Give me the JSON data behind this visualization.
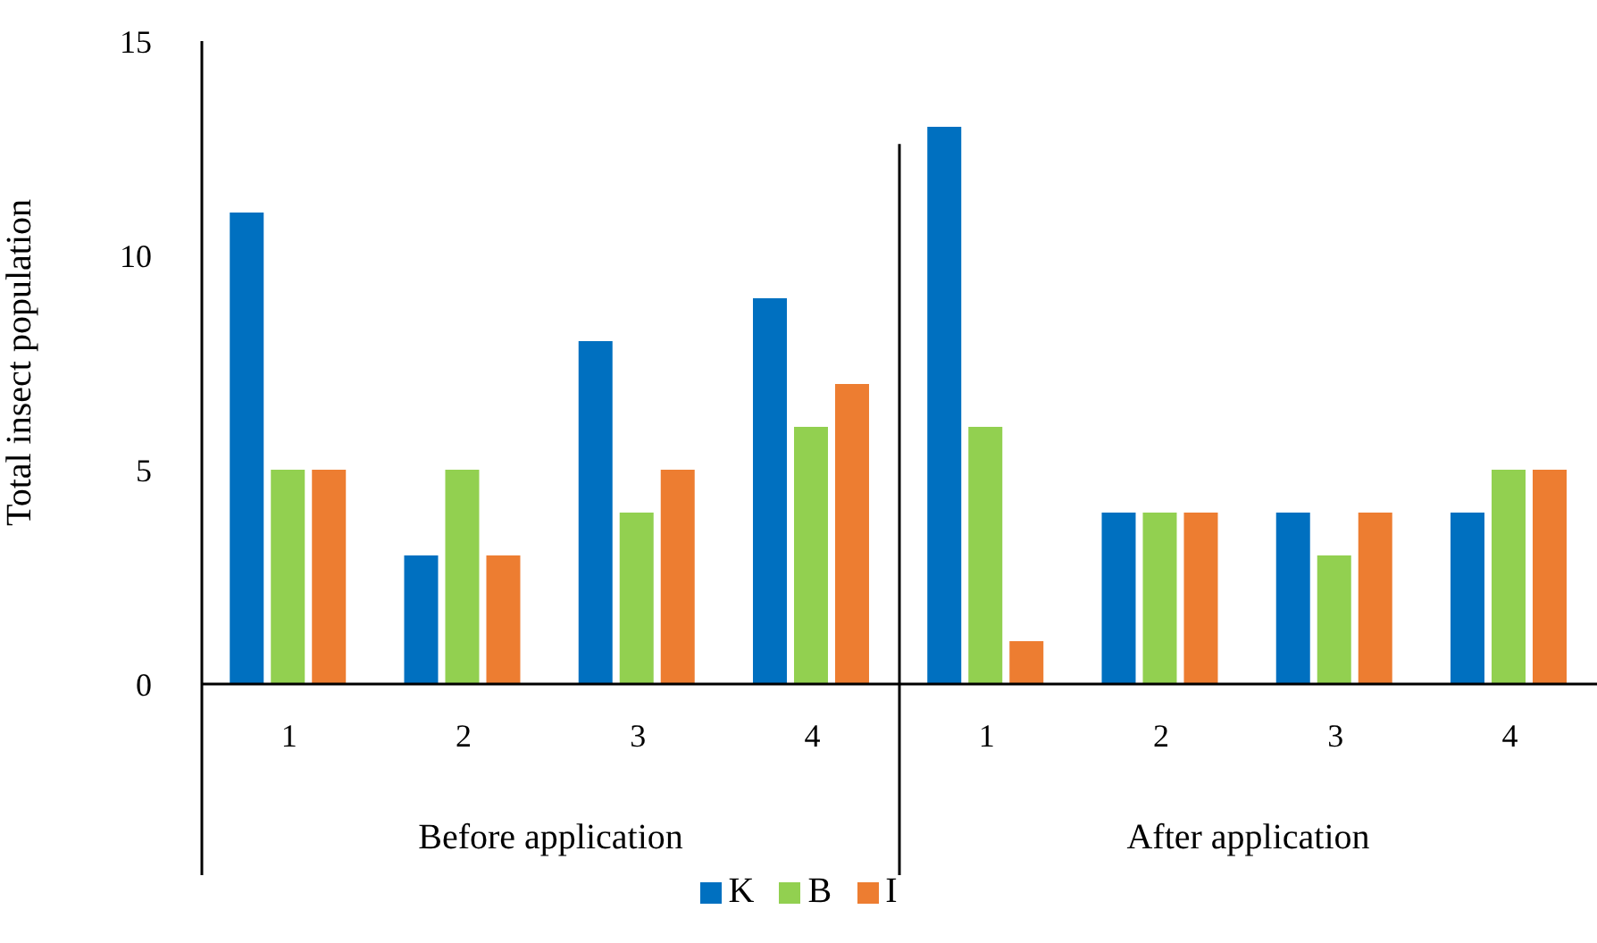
{
  "chart_data": {
    "type": "bar",
    "ylabel": "Total insect population",
    "categories": [
      "1",
      "2",
      "3",
      "4",
      "1",
      "2",
      "3",
      "4"
    ],
    "series": [
      {
        "name": "K",
        "color": "#0070c0",
        "values": [
          11,
          3,
          8,
          9,
          13,
          4,
          4,
          4
        ]
      },
      {
        "name": "B",
        "color": "#92d050",
        "values": [
          5,
          5,
          4,
          6,
          6,
          4,
          3,
          5
        ]
      },
      {
        "name": "I",
        "color": "#ed7d31",
        "values": [
          5,
          3,
          5,
          7,
          1,
          4,
          4,
          5
        ]
      }
    ],
    "annotations": [
      "Before application",
      "After application"
    ],
    "ylim": [
      0,
      15
    ],
    "yticks": [
      0,
      5,
      10,
      15
    ],
    "grid": false,
    "legend": "bottom"
  }
}
